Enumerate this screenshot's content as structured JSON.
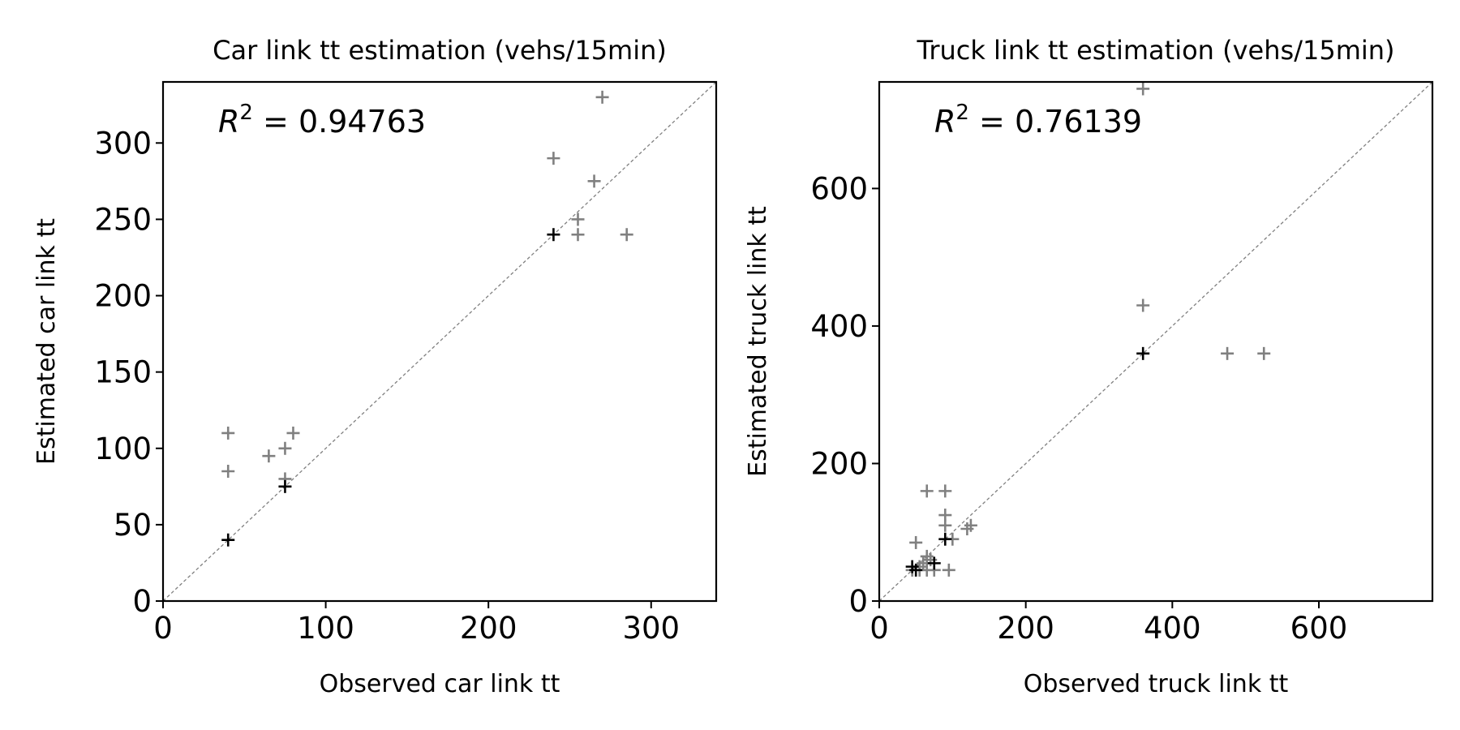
{
  "chart_data": [
    {
      "type": "scatter",
      "title": "Car link tt estimation (vehs/15min)",
      "xlabel": "Observed car link tt",
      "ylabel": "Estimated car link tt",
      "annotation": {
        "prefix": "R",
        "sup": "2",
        "value": " = 0.94763"
      },
      "xlim": [
        0,
        340
      ],
      "ylim": [
        0,
        340
      ],
      "xticks": [
        0,
        100,
        200,
        300
      ],
      "yticks": [
        0,
        50,
        100,
        150,
        200,
        250,
        300
      ],
      "xtick_labels": [
        "0",
        "100",
        "200",
        "300"
      ],
      "ytick_labels": [
        "0",
        "50",
        "100",
        "150",
        "200",
        "250",
        "300"
      ],
      "grid": false,
      "diagonal": true,
      "series": [
        {
          "color": "#808080",
          "points": [
            [
              40,
              110
            ],
            [
              40,
              85
            ],
            [
              65,
              95
            ],
            [
              75,
              100
            ],
            [
              80,
              110
            ],
            [
              75,
              80
            ],
            [
              240,
              290
            ],
            [
              270,
              330
            ],
            [
              265,
              275
            ],
            [
              255,
              250
            ],
            [
              255,
              240
            ],
            [
              285,
              240
            ]
          ]
        },
        {
          "color": "#000000",
          "points": [
            [
              40,
              40
            ],
            [
              75,
              75
            ],
            [
              240,
              240
            ]
          ]
        }
      ]
    },
    {
      "type": "scatter",
      "title": "Truck link tt estimation (vehs/15min)",
      "xlabel": "Observed truck link tt",
      "ylabel": "Estimated truck link tt",
      "annotation": {
        "prefix": "R",
        "sup": "2",
        "value": " = 0.76139"
      },
      "xlim": [
        0,
        755
      ],
      "ylim": [
        0,
        755
      ],
      "xticks": [
        0,
        200,
        400,
        600
      ],
      "yticks": [
        0,
        200,
        400,
        600
      ],
      "xtick_labels": [
        "0",
        "200",
        "400",
        "600"
      ],
      "ytick_labels": [
        "0",
        "200",
        "400",
        "600"
      ],
      "grid": false,
      "diagonal": true,
      "series": [
        {
          "color": "#808080",
          "points": [
            [
              360,
              745
            ],
            [
              360,
              430
            ],
            [
              475,
              360
            ],
            [
              525,
              360
            ],
            [
              65,
              160
            ],
            [
              90,
              160
            ],
            [
              90,
              125
            ],
            [
              90,
              110
            ],
            [
              50,
              85
            ],
            [
              65,
              65
            ],
            [
              100,
              90
            ],
            [
              120,
              105
            ],
            [
              125,
              110
            ],
            [
              55,
              45
            ],
            [
              65,
              45
            ],
            [
              75,
              45
            ],
            [
              95,
              45
            ],
            [
              60,
              55
            ],
            [
              70,
              60
            ],
            [
              45,
              45
            ],
            [
              55,
              50
            ]
          ]
        },
        {
          "color": "#000000",
          "points": [
            [
              45,
              50
            ],
            [
              50,
              45
            ],
            [
              75,
              55
            ],
            [
              90,
              90
            ],
            [
              360,
              360
            ]
          ]
        }
      ]
    }
  ]
}
